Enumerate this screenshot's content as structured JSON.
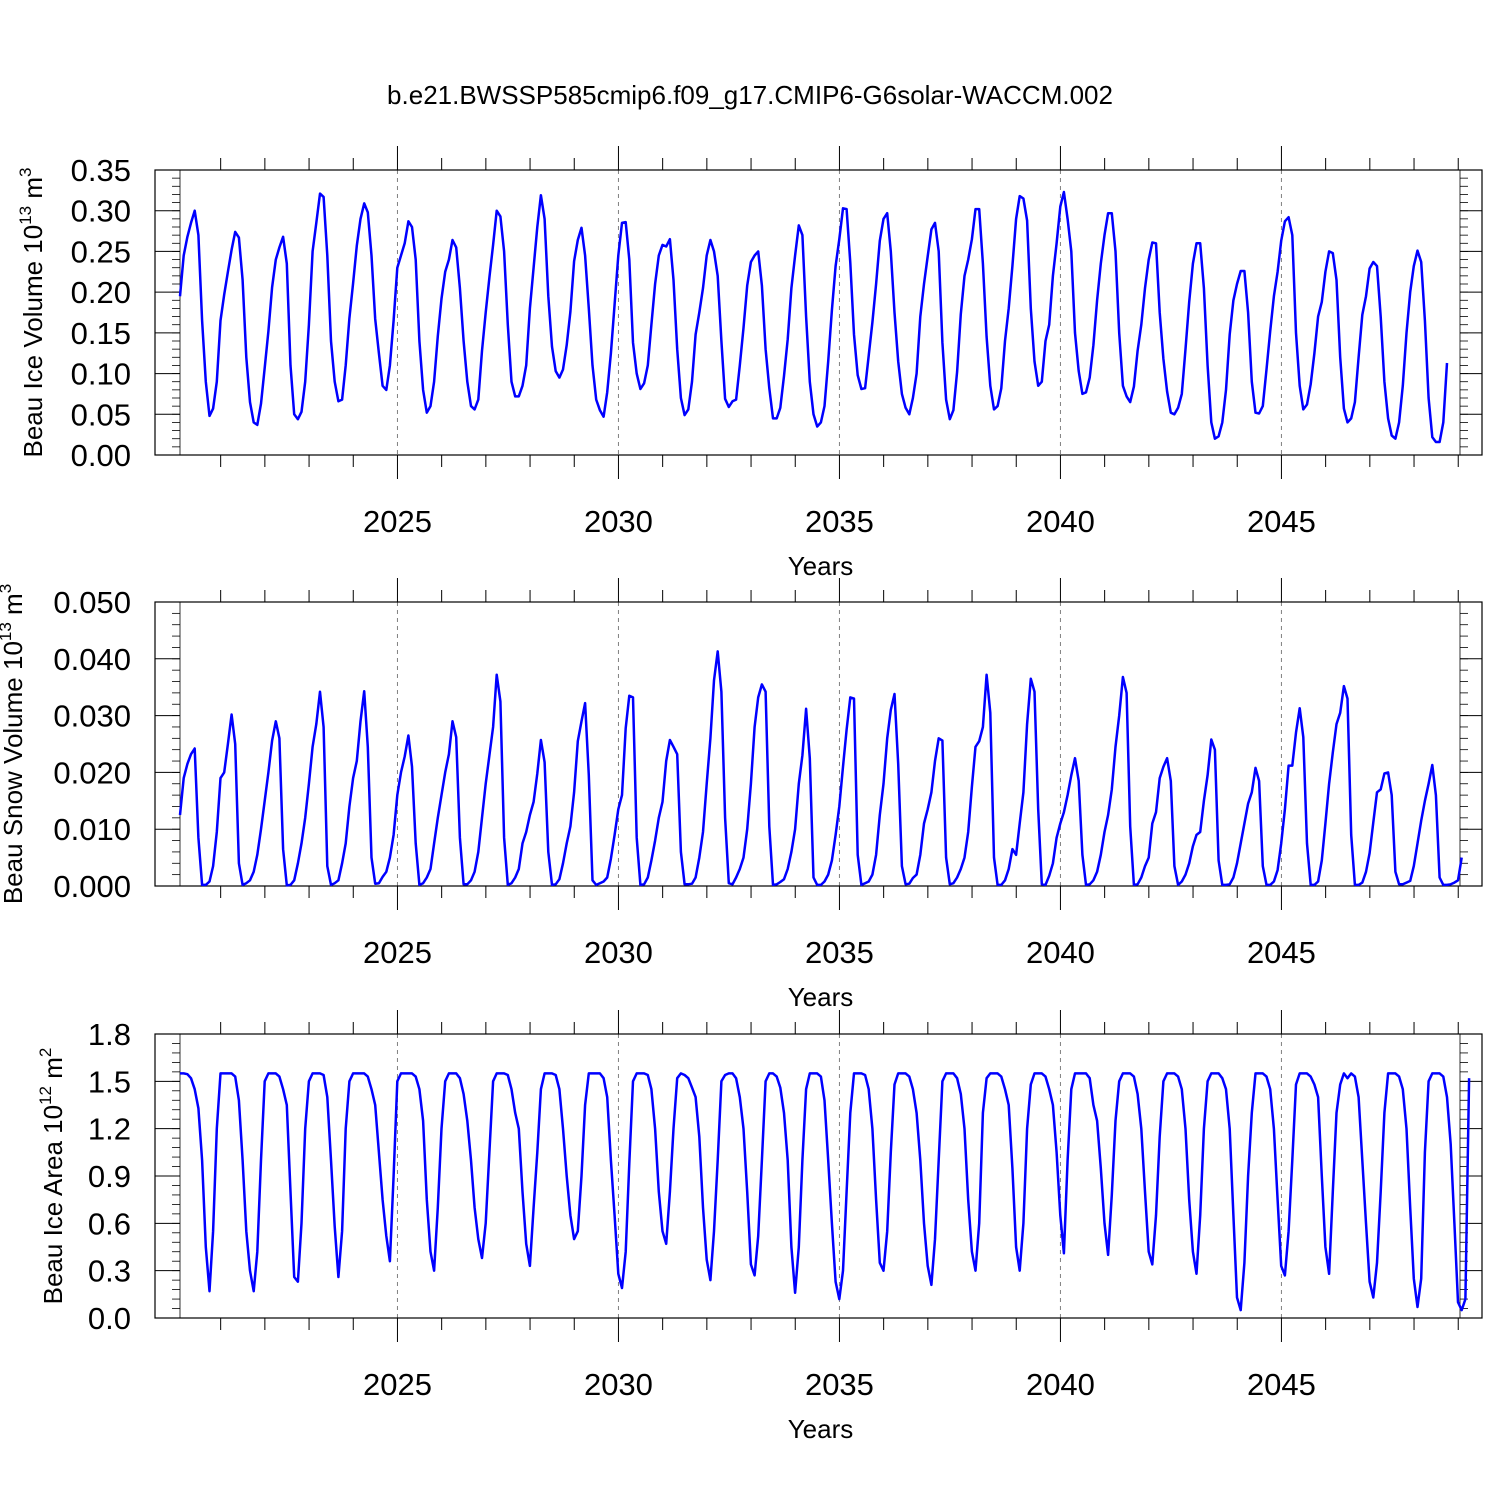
{
  "title": "b.e21.BWSSP585cmip6.f09_g17.CMIP6-G6solar-WACCM.002",
  "colors": {
    "series": "#0000ff",
    "axis": "#000000",
    "refline": "#808080"
  },
  "chart_data": [
    {
      "type": "line",
      "ylabel": "Beau Ice Volume 10",
      "ylabel_sup": "13",
      "ylabel_unit": " m",
      "ylabel_unit_sup": "3",
      "xlabel": "Years",
      "xlim": [
        2020.08,
        2049.04
      ],
      "ylim": [
        0,
        0.35
      ],
      "x_ticks": [
        2025,
        2030,
        2035,
        2040,
        2045
      ],
      "x_tick_labels": [
        "2025",
        "2030",
        "2035",
        "2040",
        "2045"
      ],
      "y_ticks": [
        0.0,
        0.05,
        0.1,
        0.15,
        0.2,
        0.25,
        0.3,
        0.35
      ],
      "y_tick_labels": [
        "0.00",
        "0.05",
        "0.10",
        "0.15",
        "0.20",
        "0.25",
        "0.30",
        "0.35"
      ],
      "y_minor_step": 0.01,
      "reference_lines": [
        2025,
        2030,
        2035,
        2040,
        2045
      ],
      "x_start": 2020.08,
      "x_step": 0.08333,
      "values": [
        0.195,
        0.245,
        0.268,
        0.285,
        0.3,
        0.27,
        0.165,
        0.09,
        0.048,
        0.057,
        0.09,
        0.165,
        0.197,
        0.225,
        0.252,
        0.274,
        0.267,
        0.215,
        0.12,
        0.065,
        0.04,
        0.037,
        0.063,
        0.107,
        0.152,
        0.206,
        0.24,
        0.255,
        0.268,
        0.235,
        0.11,
        0.05,
        0.044,
        0.053,
        0.09,
        0.16,
        0.25,
        0.285,
        0.321,
        0.317,
        0.245,
        0.14,
        0.09,
        0.066,
        0.068,
        0.11,
        0.168,
        0.211,
        0.257,
        0.29,
        0.309,
        0.298,
        0.245,
        0.167,
        0.125,
        0.085,
        0.08,
        0.11,
        0.165,
        0.23,
        0.245,
        0.26,
        0.287,
        0.28,
        0.24,
        0.14,
        0.08,
        0.052,
        0.06,
        0.09,
        0.146,
        0.192,
        0.225,
        0.24,
        0.264,
        0.255,
        0.205,
        0.14,
        0.09,
        0.06,
        0.056,
        0.068,
        0.128,
        0.175,
        0.218,
        0.258,
        0.3,
        0.293,
        0.25,
        0.16,
        0.09,
        0.072,
        0.072,
        0.085,
        0.11,
        0.18,
        0.23,
        0.28,
        0.319,
        0.29,
        0.195,
        0.133,
        0.103,
        0.095,
        0.105,
        0.135,
        0.176,
        0.238,
        0.264,
        0.279,
        0.245,
        0.18,
        0.11,
        0.068,
        0.055,
        0.047,
        0.077,
        0.125,
        0.185,
        0.245,
        0.285,
        0.286,
        0.24,
        0.138,
        0.1,
        0.081,
        0.088,
        0.11,
        0.16,
        0.21,
        0.245,
        0.258,
        0.256,
        0.265,
        0.215,
        0.13,
        0.07,
        0.049,
        0.056,
        0.09,
        0.148,
        0.175,
        0.205,
        0.245,
        0.264,
        0.25,
        0.22,
        0.14,
        0.069,
        0.059,
        0.066,
        0.068,
        0.11,
        0.156,
        0.208,
        0.237,
        0.245,
        0.25,
        0.208,
        0.13,
        0.082,
        0.045,
        0.045,
        0.058,
        0.097,
        0.142,
        0.205,
        0.245,
        0.282,
        0.27,
        0.17,
        0.09,
        0.05,
        0.035,
        0.04,
        0.06,
        0.115,
        0.178,
        0.232,
        0.265,
        0.303,
        0.302,
        0.236,
        0.148,
        0.098,
        0.081,
        0.082,
        0.122,
        0.163,
        0.21,
        0.263,
        0.29,
        0.297,
        0.25,
        0.175,
        0.115,
        0.075,
        0.058,
        0.05,
        0.07,
        0.1,
        0.17,
        0.21,
        0.244,
        0.277,
        0.285,
        0.25,
        0.138,
        0.068,
        0.044,
        0.055,
        0.102,
        0.173,
        0.22,
        0.24,
        0.265,
        0.302,
        0.302,
        0.235,
        0.145,
        0.085,
        0.056,
        0.06,
        0.082,
        0.14,
        0.18,
        0.232,
        0.29,
        0.318,
        0.315,
        0.288,
        0.18,
        0.115,
        0.085,
        0.09,
        0.14,
        0.16,
        0.22,
        0.26,
        0.305,
        0.323,
        0.29,
        0.25,
        0.15,
        0.103,
        0.075,
        0.077,
        0.095,
        0.135,
        0.19,
        0.235,
        0.27,
        0.297,
        0.297,
        0.25,
        0.15,
        0.085,
        0.072,
        0.065,
        0.084,
        0.128,
        0.16,
        0.205,
        0.24,
        0.261,
        0.26,
        0.175,
        0.118,
        0.078,
        0.052,
        0.05,
        0.058,
        0.075,
        0.13,
        0.188,
        0.235,
        0.26,
        0.26,
        0.205,
        0.11,
        0.04,
        0.02,
        0.023,
        0.04,
        0.08,
        0.148,
        0.19,
        0.21,
        0.226,
        0.226,
        0.175,
        0.09,
        0.052,
        0.051,
        0.06,
        0.105,
        0.152,
        0.195,
        0.225,
        0.263,
        0.287,
        0.292,
        0.27,
        0.15,
        0.085,
        0.056,
        0.062,
        0.087,
        0.125,
        0.17,
        0.188,
        0.225,
        0.25,
        0.248,
        0.215,
        0.12,
        0.057,
        0.04,
        0.045,
        0.065,
        0.12,
        0.172,
        0.195,
        0.229,
        0.237,
        0.232,
        0.17,
        0.09,
        0.045,
        0.024,
        0.02,
        0.04,
        0.085,
        0.15,
        0.2,
        0.232,
        0.251,
        0.237,
        0.165,
        0.07,
        0.022,
        0.016,
        0.016,
        0.04,
        0.113
      ]
    },
    {
      "type": "line",
      "ylabel": "Beau Snow Volume 10",
      "ylabel_sup": "13",
      "ylabel_unit": " m",
      "ylabel_unit_sup": "3",
      "xlabel": "Years",
      "xlim": [
        2020.08,
        2049.04
      ],
      "ylim": [
        0,
        0.05
      ],
      "x_ticks": [
        2025,
        2030,
        2035,
        2040,
        2045
      ],
      "x_tick_labels": [
        "2025",
        "2030",
        "2035",
        "2040",
        "2045"
      ],
      "y_ticks": [
        0.0,
        0.01,
        0.02,
        0.03,
        0.04,
        0.05
      ],
      "y_tick_labels": [
        "0.000",
        "0.010",
        "0.020",
        "0.030",
        "0.040",
        "0.050"
      ],
      "y_minor_step": 0.002,
      "reference_lines": [
        2025,
        2030,
        2035,
        2040,
        2045
      ],
      "x_start": 2020.08,
      "x_step": 0.08333,
      "values": [
        0.0125,
        0.019,
        0.0215,
        0.0232,
        0.0242,
        0.0085,
        0.0002,
        0.0002,
        0.0008,
        0.0035,
        0.0095,
        0.019,
        0.02,
        0.025,
        0.0302,
        0.025,
        0.004,
        0.0002,
        0.0005,
        0.001,
        0.0025,
        0.0055,
        0.01,
        0.015,
        0.02,
        0.0256,
        0.029,
        0.026,
        0.0065,
        0.0001,
        0.0002,
        0.001,
        0.004,
        0.0075,
        0.012,
        0.018,
        0.0245,
        0.0285,
        0.0342,
        0.028,
        0.0035,
        0.0002,
        0.0005,
        0.001,
        0.004,
        0.0075,
        0.014,
        0.019,
        0.022,
        0.029,
        0.0343,
        0.0245,
        0.005,
        0.0004,
        0.0005,
        0.0016,
        0.0025,
        0.005,
        0.009,
        0.016,
        0.02,
        0.0228,
        0.0265,
        0.021,
        0.0075,
        0.0002,
        0.0005,
        0.0015,
        0.003,
        0.0075,
        0.012,
        0.016,
        0.02,
        0.0232,
        0.029,
        0.0262,
        0.0085,
        0.0003,
        0.0003,
        0.001,
        0.0025,
        0.006,
        0.012,
        0.018,
        0.023,
        0.028,
        0.0372,
        0.0325,
        0.0085,
        0.0002,
        0.0005,
        0.0015,
        0.003,
        0.0075,
        0.0095,
        0.0125,
        0.0148,
        0.0198,
        0.0257,
        0.0218,
        0.006,
        0.0002,
        0.0003,
        0.0012,
        0.004,
        0.0075,
        0.0105,
        0.0165,
        0.0255,
        0.029,
        0.0322,
        0.0195,
        0.001,
        0.0002,
        0.0005,
        0.0008,
        0.0015,
        0.0048,
        0.009,
        0.0135,
        0.016,
        0.0278,
        0.0335,
        0.0332,
        0.0085,
        0.0002,
        0.0003,
        0.0015,
        0.0045,
        0.008,
        0.012,
        0.0148,
        0.022,
        0.0257,
        0.0245,
        0.0232,
        0.006,
        0.0003,
        0.0003,
        0.0004,
        0.0015,
        0.005,
        0.0095,
        0.018,
        0.026,
        0.0362,
        0.0413,
        0.0342,
        0.012,
        0.0005,
        0.0003,
        0.0015,
        0.003,
        0.005,
        0.01,
        0.018,
        0.028,
        0.0332,
        0.0355,
        0.0342,
        0.0105,
        0.0002,
        0.0003,
        0.0007,
        0.0012,
        0.003,
        0.006,
        0.01,
        0.018,
        0.023,
        0.0312,
        0.0225,
        0.0015,
        0.0002,
        0.0002,
        0.0008,
        0.002,
        0.0045,
        0.009,
        0.014,
        0.021,
        0.0275,
        0.0332,
        0.033,
        0.0055,
        0.0002,
        0.0005,
        0.0008,
        0.002,
        0.0055,
        0.0125,
        0.018,
        0.026,
        0.031,
        0.0338,
        0.0215,
        0.0035,
        0.0003,
        0.0004,
        0.0014,
        0.002,
        0.0055,
        0.011,
        0.0135,
        0.0165,
        0.022,
        0.026,
        0.0256,
        0.005,
        0.0003,
        0.0005,
        0.0015,
        0.003,
        0.005,
        0.0095,
        0.0175,
        0.0245,
        0.0255,
        0.028,
        0.0372,
        0.0305,
        0.005,
        0.0002,
        0.0002,
        0.001,
        0.003,
        0.0065,
        0.0055,
        0.011,
        0.0165,
        0.0285,
        0.0365,
        0.0342,
        0.0135,
        0.0003,
        0.0002,
        0.0018,
        0.004,
        0.0085,
        0.011,
        0.013,
        0.016,
        0.0195,
        0.0225,
        0.0185,
        0.0055,
        0.0002,
        0.0003,
        0.001,
        0.0025,
        0.0055,
        0.0095,
        0.0125,
        0.017,
        0.0245,
        0.03,
        0.0368,
        0.034,
        0.0105,
        0.0002,
        0.0003,
        0.0015,
        0.0035,
        0.005,
        0.011,
        0.013,
        0.019,
        0.021,
        0.0225,
        0.0185,
        0.0035,
        0.0002,
        0.0008,
        0.002,
        0.004,
        0.007,
        0.009,
        0.0095,
        0.015,
        0.0195,
        0.0258,
        0.024,
        0.0045,
        0.0002,
        0.0002,
        0.0003,
        0.0015,
        0.004,
        0.0075,
        0.011,
        0.0145,
        0.0165,
        0.0208,
        0.0185,
        0.0035,
        0.0002,
        0.0002,
        0.0008,
        0.0028,
        0.0075,
        0.0135,
        0.0212,
        0.0212,
        0.027,
        0.0313,
        0.0262,
        0.0075,
        0.0002,
        0.0002,
        0.0008,
        0.0045,
        0.011,
        0.018,
        0.0235,
        0.0285,
        0.0305,
        0.0352,
        0.033,
        0.009,
        0.0002,
        0.0002,
        0.0006,
        0.0025,
        0.0058,
        0.0112,
        0.0165,
        0.017,
        0.0198,
        0.02,
        0.016,
        0.0025,
        0.0003,
        0.0003,
        0.0006,
        0.0009,
        0.0035,
        0.0075,
        0.0115,
        0.015,
        0.018,
        0.0213,
        0.016,
        0.0015,
        0.0002,
        0.0002,
        0.0003,
        0.0006,
        0.001,
        0.005
      ]
    },
    {
      "type": "line",
      "ylabel": "Beau Ice Area 10",
      "ylabel_sup": "12",
      "ylabel_unit": " m",
      "ylabel_unit_sup": "2",
      "xlabel": "Years",
      "xlim": [
        2020.08,
        2049.04
      ],
      "ylim": [
        0,
        1.8
      ],
      "x_ticks": [
        2025,
        2030,
        2035,
        2040,
        2045
      ],
      "x_tick_labels": [
        "2025",
        "2030",
        "2035",
        "2040",
        "2045"
      ],
      "y_ticks": [
        0.0,
        0.3,
        0.6,
        0.9,
        1.2,
        1.5,
        1.8
      ],
      "y_tick_labels": [
        "0.0",
        "0.3",
        "0.6",
        "0.9",
        "1.2",
        "1.5",
        "1.8"
      ],
      "y_minor_step": 0.06,
      "reference_lines": [
        2025,
        2030,
        2035,
        2040,
        2045
      ],
      "x_start": 2020.08,
      "x_step": 0.08333,
      "values": [
        1.55,
        1.55,
        1.545,
        1.52,
        1.45,
        1.33,
        1.0,
        0.45,
        0.17,
        0.55,
        1.2,
        1.55,
        1.55,
        1.55,
        1.55,
        1.53,
        1.38,
        1.0,
        0.55,
        0.3,
        0.17,
        0.42,
        1.0,
        1.5,
        1.55,
        1.55,
        1.55,
        1.53,
        1.45,
        1.35,
        0.8,
        0.26,
        0.23,
        0.6,
        1.2,
        1.5,
        1.55,
        1.55,
        1.55,
        1.54,
        1.4,
        1.0,
        0.58,
        0.26,
        0.55,
        1.2,
        1.5,
        1.55,
        1.55,
        1.55,
        1.55,
        1.53,
        1.45,
        1.35,
        1.05,
        0.75,
        0.52,
        0.36,
        0.9,
        1.5,
        1.55,
        1.55,
        1.55,
        1.55,
        1.53,
        1.45,
        1.25,
        0.75,
        0.42,
        0.3,
        0.7,
        1.2,
        1.5,
        1.55,
        1.55,
        1.55,
        1.52,
        1.42,
        1.25,
        1.0,
        0.7,
        0.5,
        0.38,
        0.6,
        1.05,
        1.5,
        1.55,
        1.55,
        1.55,
        1.54,
        1.45,
        1.3,
        1.2,
        0.8,
        0.47,
        0.33,
        0.7,
        1.05,
        1.45,
        1.55,
        1.55,
        1.55,
        1.54,
        1.45,
        1.2,
        0.9,
        0.65,
        0.5,
        0.55,
        0.9,
        1.35,
        1.55,
        1.55,
        1.55,
        1.55,
        1.52,
        1.4,
        1.0,
        0.65,
        0.28,
        0.19,
        0.42,
        0.98,
        1.5,
        1.55,
        1.55,
        1.55,
        1.54,
        1.45,
        1.2,
        0.8,
        0.55,
        0.47,
        0.8,
        1.2,
        1.52,
        1.55,
        1.54,
        1.52,
        1.46,
        1.4,
        1.15,
        0.7,
        0.37,
        0.24,
        0.55,
        1.0,
        1.5,
        1.54,
        1.55,
        1.55,
        1.52,
        1.4,
        1.2,
        0.8,
        0.34,
        0.27,
        0.52,
        1.0,
        1.5,
        1.55,
        1.55,
        1.53,
        1.46,
        1.3,
        1.0,
        0.45,
        0.16,
        0.45,
        1.0,
        1.45,
        1.55,
        1.55,
        1.55,
        1.53,
        1.38,
        1.0,
        0.6,
        0.23,
        0.12,
        0.3,
        0.8,
        1.3,
        1.55,
        1.55,
        1.55,
        1.54,
        1.45,
        1.2,
        0.75,
        0.35,
        0.3,
        0.55,
        1.05,
        1.48,
        1.55,
        1.55,
        1.55,
        1.53,
        1.45,
        1.3,
        1.0,
        0.6,
        0.33,
        0.21,
        0.5,
        1.0,
        1.5,
        1.55,
        1.55,
        1.55,
        1.52,
        1.42,
        1.2,
        0.75,
        0.42,
        0.3,
        0.6,
        1.3,
        1.52,
        1.55,
        1.55,
        1.55,
        1.53,
        1.45,
        1.35,
        0.95,
        0.45,
        0.3,
        0.6,
        1.2,
        1.48,
        1.55,
        1.55,
        1.55,
        1.53,
        1.45,
        1.35,
        1.05,
        0.65,
        0.41,
        1.0,
        1.45,
        1.55,
        1.55,
        1.55,
        1.55,
        1.52,
        1.35,
        1.25,
        0.95,
        0.6,
        0.4,
        0.78,
        1.25,
        1.5,
        1.55,
        1.55,
        1.55,
        1.53,
        1.42,
        1.2,
        0.8,
        0.42,
        0.34,
        0.65,
        1.15,
        1.5,
        1.55,
        1.55,
        1.55,
        1.53,
        1.45,
        1.2,
        0.75,
        0.42,
        0.28,
        0.65,
        1.2,
        1.5,
        1.55,
        1.55,
        1.55,
        1.52,
        1.45,
        1.2,
        0.65,
        0.13,
        0.05,
        0.35,
        0.9,
        1.3,
        1.55,
        1.55,
        1.55,
        1.53,
        1.45,
        1.2,
        0.75,
        0.33,
        0.27,
        0.55,
        1.0,
        1.48,
        1.55,
        1.55,
        1.55,
        1.53,
        1.48,
        1.4,
        0.9,
        0.45,
        0.28,
        0.8,
        1.3,
        1.48,
        1.55,
        1.52,
        1.55,
        1.53,
        1.4,
        1.0,
        0.6,
        0.23,
        0.13,
        0.35,
        0.8,
        1.3,
        1.55,
        1.55,
        1.55,
        1.53,
        1.45,
        1.2,
        0.7,
        0.25,
        0.07,
        0.25,
        1.05,
        1.5,
        1.55,
        1.55,
        1.55,
        1.53,
        1.4,
        1.1,
        0.6,
        0.1,
        0.05,
        0.12,
        1.52
      ]
    }
  ]
}
